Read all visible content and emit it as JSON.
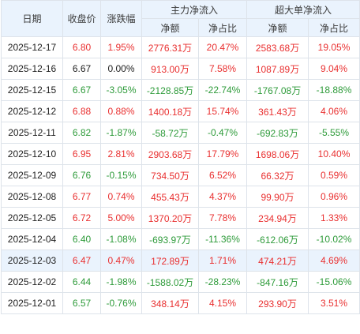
{
  "headers": {
    "date": "日期",
    "close": "收盘价",
    "change": "涨跌幅",
    "main_group": "主力净流入",
    "super_group": "超大单净流入",
    "net_amount": "净额",
    "net_ratio": "净占比"
  },
  "rows": [
    {
      "date": "2025-12-17",
      "close": "6.80",
      "change": "1.95%",
      "main_net": "2776.31万",
      "main_ratio": "20.47%",
      "super_net": "2583.68万",
      "super_ratio": "19.05%"
    },
    {
      "date": "2025-12-16",
      "close": "6.67",
      "change": "0.00%",
      "main_net": "913.00万",
      "main_ratio": "7.58%",
      "super_net": "1087.89万",
      "super_ratio": "9.04%"
    },
    {
      "date": "2025-12-15",
      "close": "6.67",
      "change": "-3.05%",
      "main_net": "-2128.85万",
      "main_ratio": "-22.74%",
      "super_net": "-1767.08万",
      "super_ratio": "-18.88%"
    },
    {
      "date": "2025-12-12",
      "close": "6.88",
      "change": "0.88%",
      "main_net": "1400.18万",
      "main_ratio": "15.74%",
      "super_net": "361.43万",
      "super_ratio": "4.06%"
    },
    {
      "date": "2025-12-11",
      "close": "6.82",
      "change": "-1.87%",
      "main_net": "-58.72万",
      "main_ratio": "-0.47%",
      "super_net": "-692.83万",
      "super_ratio": "-5.55%"
    },
    {
      "date": "2025-12-10",
      "close": "6.95",
      "change": "2.81%",
      "main_net": "2903.68万",
      "main_ratio": "17.79%",
      "super_net": "1698.06万",
      "super_ratio": "10.40%"
    },
    {
      "date": "2025-12-09",
      "close": "6.76",
      "change": "-0.15%",
      "main_net": "734.50万",
      "main_ratio": "6.52%",
      "super_net": "66.32万",
      "super_ratio": "0.59%"
    },
    {
      "date": "2025-12-08",
      "close": "6.77",
      "change": "0.74%",
      "main_net": "455.43万",
      "main_ratio": "4.37%",
      "super_net": "99.90万",
      "super_ratio": "0.96%"
    },
    {
      "date": "2025-12-05",
      "close": "6.72",
      "change": "5.00%",
      "main_net": "1370.20万",
      "main_ratio": "7.78%",
      "super_net": "234.94万",
      "super_ratio": "1.33%"
    },
    {
      "date": "2025-12-04",
      "close": "6.40",
      "change": "-1.08%",
      "main_net": "-693.97万",
      "main_ratio": "-11.36%",
      "super_net": "-612.06万",
      "super_ratio": "-10.02%"
    },
    {
      "date": "2025-12-03",
      "close": "6.47",
      "change": "0.47%",
      "main_net": "172.89万",
      "main_ratio": "1.71%",
      "super_net": "474.21万",
      "super_ratio": "4.69%"
    },
    {
      "date": "2025-12-02",
      "close": "6.44",
      "change": "-1.98%",
      "main_net": "-1588.02万",
      "main_ratio": "-28.23%",
      "super_net": "-847.16万",
      "super_ratio": "-15.06%"
    },
    {
      "date": "2025-12-01",
      "close": "6.57",
      "change": "-0.76%",
      "main_net": "348.14万",
      "main_ratio": "4.15%",
      "super_net": "293.90万",
      "super_ratio": "3.51%"
    }
  ],
  "colors": {
    "up": "#e93030",
    "down": "#2e9b3a",
    "header_bg": "#eaf3fd",
    "highlight_row_bg": "#eaf3fd"
  },
  "highlighted_row_date": "2025-12-03"
}
